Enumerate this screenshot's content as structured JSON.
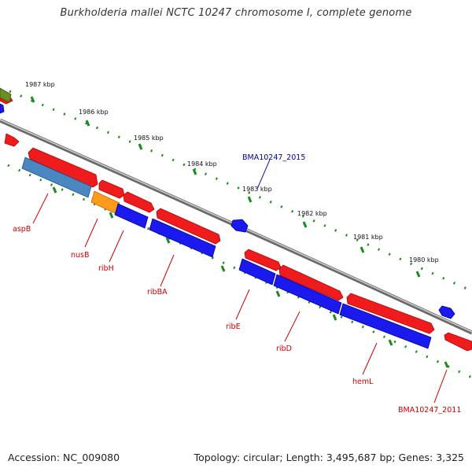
{
  "title": "Burkholderia mallei NCTC 10247 chromosome I, complete genome",
  "footer": {
    "accession": "Accession: NC_009080",
    "topology": "Topology: circular; Length: 3,495,687 bp; Genes: 3,325"
  },
  "ticks": [
    "1987 kbp",
    "1986 kbp",
    "1985 kbp",
    "1984 kbp",
    "1983 kbp",
    "1982 kbp",
    "1981 kbp",
    "1980 kbp"
  ],
  "gene_labels": {
    "aspB": "aspB",
    "nusB": "nusB",
    "ribH": "ribH",
    "ribBA": "ribBA",
    "ribE": "ribE",
    "ribD": "ribD",
    "hemL": "hemL",
    "BMA10247_2015": "BMA10247_2015",
    "BMA10247_2011": "BMA10247_2011"
  },
  "colors": {
    "red_gene": "#ee1c1c",
    "blue_gene": "#1a1aee",
    "steel_gene": "#4a86c0",
    "orange_gene": "#ff9a1a",
    "olive_gene": "#6a8e23",
    "axis_dots": "#1a8c1a",
    "label_red": "#cc0000",
    "label_blue": "#000099"
  }
}
